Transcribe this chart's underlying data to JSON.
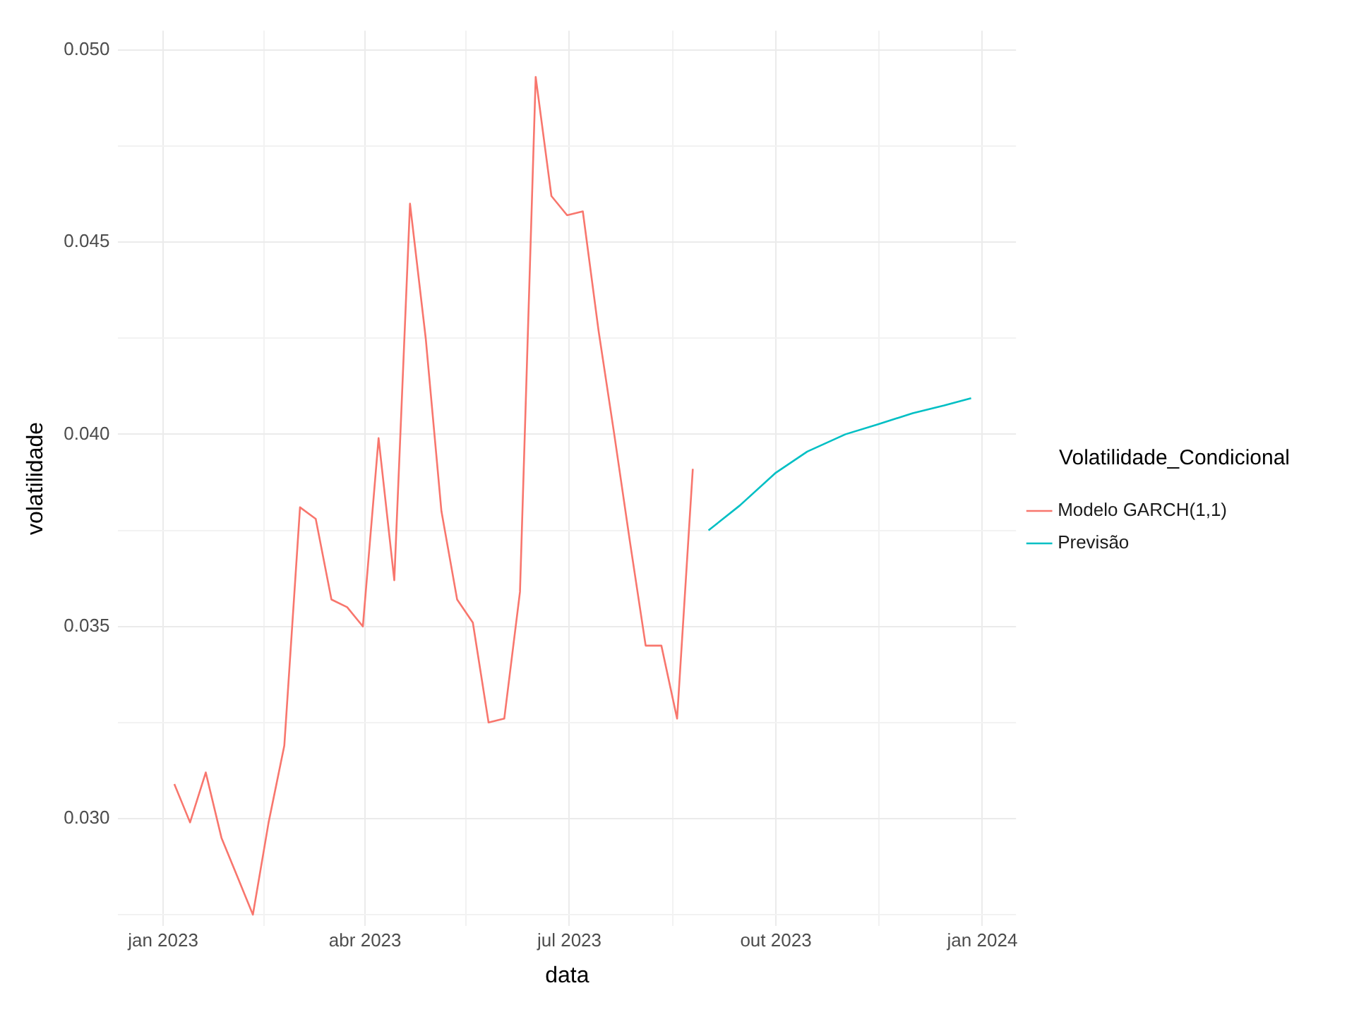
{
  "chart_data": {
    "type": "line",
    "xlabel": "data",
    "ylabel": "volatilidade",
    "legend_title": "Volatilidade_Condicional",
    "legend": "right",
    "grid": true,
    "marker": "none",
    "line_style": "solid",
    "xlim": [
      "2022-12-12",
      "2024-01-16"
    ],
    "xticks": [
      {
        "value": "2023-01-01",
        "label": "jan 2023"
      },
      {
        "value": "2023-02-15",
        "label": null
      },
      {
        "value": "2023-04-01",
        "label": "abr 2023"
      },
      {
        "value": "2023-05-16",
        "label": null
      },
      {
        "value": "2023-07-01",
        "label": "jul 2023"
      },
      {
        "value": "2023-08-16",
        "label": null
      },
      {
        "value": "2023-10-01",
        "label": "out 2023"
      },
      {
        "value": "2023-11-16",
        "label": null
      },
      {
        "value": "2024-01-01",
        "label": "jan 2024"
      }
    ],
    "ylim": [
      0.0272,
      0.0505
    ],
    "yticks": [
      {
        "value": 0.0275,
        "label": null
      },
      {
        "value": 0.03,
        "label": "0.030"
      },
      {
        "value": 0.0325,
        "label": null
      },
      {
        "value": 0.035,
        "label": "0.035"
      },
      {
        "value": 0.0375,
        "label": null
      },
      {
        "value": 0.04,
        "label": "0.040"
      },
      {
        "value": 0.0425,
        "label": null
      },
      {
        "value": 0.045,
        "label": "0.045"
      },
      {
        "value": 0.0475,
        "label": null
      },
      {
        "value": 0.05,
        "label": "0.050"
      }
    ],
    "series": [
      {
        "name": "Modelo GARCH(1,1)",
        "color": "#f8766d",
        "x": [
          "2023-01-06",
          "2023-01-13",
          "2023-01-20",
          "2023-01-27",
          "2023-02-03",
          "2023-02-10",
          "2023-02-17",
          "2023-02-24",
          "2023-03-03",
          "2023-03-10",
          "2023-03-17",
          "2023-03-24",
          "2023-03-31",
          "2023-04-07",
          "2023-04-14",
          "2023-04-21",
          "2023-04-28",
          "2023-05-05",
          "2023-05-12",
          "2023-05-19",
          "2023-05-26",
          "2023-06-02",
          "2023-06-09",
          "2023-06-16",
          "2023-06-23",
          "2023-06-30",
          "2023-07-07",
          "2023-07-14",
          "2023-07-21",
          "2023-07-28",
          "2023-08-04",
          "2023-08-11",
          "2023-08-18",
          "2023-08-25"
        ],
        "values": [
          0.0309,
          0.0299,
          0.0312,
          0.0295,
          0.0285,
          0.0275,
          0.0299,
          0.0319,
          0.0381,
          0.0378,
          0.0357,
          0.0355,
          0.035,
          0.0399,
          0.0362,
          0.046,
          0.0425,
          0.038,
          0.0357,
          0.0351,
          0.0325,
          0.0326,
          0.0359,
          0.0493,
          0.0462,
          0.0457,
          0.0458,
          0.0427,
          0.04,
          0.0372,
          0.0345,
          0.0345,
          0.0326,
          0.0391
        ]
      },
      {
        "name": "Previsão",
        "color": "#00bfc4",
        "x": [
          "2023-09-01",
          "2023-09-15",
          "2023-10-01",
          "2023-10-15",
          "2023-11-01",
          "2023-11-15",
          "2023-12-01",
          "2023-12-15",
          "2023-12-27"
        ],
        "values": [
          0.0375,
          0.03815,
          0.039,
          0.03955,
          0.04,
          0.04025,
          0.04055,
          0.04075,
          0.04094
        ]
      }
    ]
  }
}
